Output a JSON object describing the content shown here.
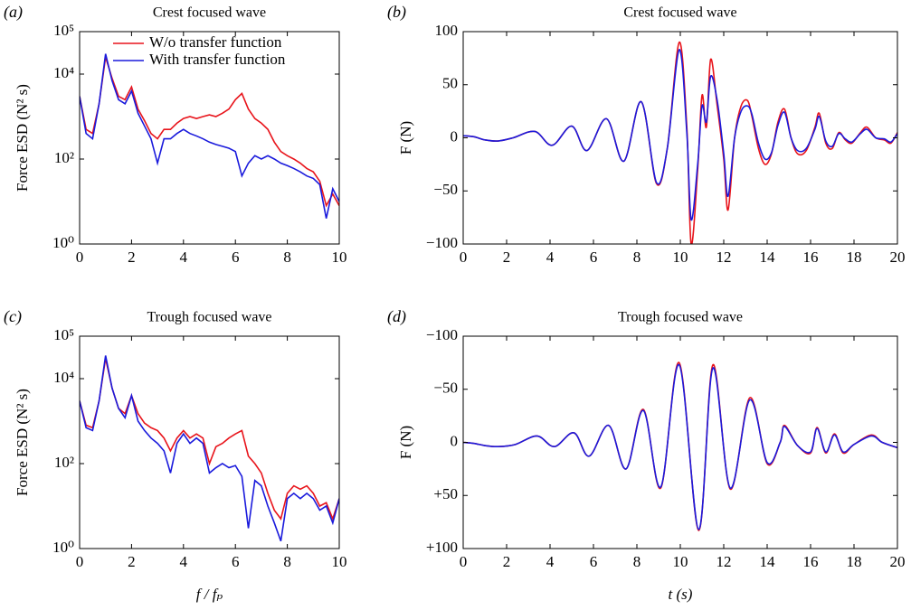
{
  "chart_data": [
    {
      "type": "line",
      "panel_label": "(a)",
      "title": "Crest focused wave",
      "ylabel": "Force ESD  (N² s)",
      "log_y": true,
      "legend": "upper right",
      "x": [
        0,
        0.25,
        0.5,
        0.75,
        1,
        1.25,
        1.5,
        1.75,
        2,
        2.25,
        2.5,
        2.75,
        3,
        3.25,
        3.5,
        3.75,
        4,
        4.25,
        4.5,
        4.75,
        5,
        5.25,
        5.5,
        5.75,
        6,
        6.25,
        6.5,
        6.75,
        7,
        7.25,
        7.5,
        7.75,
        8,
        8.25,
        8.5,
        8.75,
        9,
        9.25,
        9.5,
        9.75,
        10
      ],
      "series": [
        {
          "name": "W/o transfer function",
          "color": "#e8141b",
          "values": [
            3000,
            500,
            400,
            2000,
            25000,
            8000,
            3000,
            2500,
            5000,
            1500,
            800,
            400,
            300,
            500,
            500,
            700,
            900,
            1000,
            900,
            1000,
            1100,
            1000,
            1200,
            1500,
            2500,
            3500,
            1500,
            900,
            700,
            500,
            250,
            150,
            120,
            100,
            80,
            60,
            50,
            30,
            8,
            15,
            8
          ]
        },
        {
          "name": "With transfer function",
          "color": "#1a1adc",
          "values": [
            3000,
            400,
            300,
            2000,
            30000,
            7000,
            2500,
            2000,
            4000,
            1200,
            600,
            300,
            80,
            300,
            300,
            400,
            500,
            400,
            350,
            300,
            250,
            220,
            200,
            180,
            150,
            40,
            80,
            120,
            100,
            120,
            100,
            80,
            70,
            60,
            50,
            40,
            35,
            25,
            4,
            20,
            10
          ]
        }
      ],
      "xlim": [
        0,
        10
      ],
      "xticks": [
        0,
        2,
        4,
        6,
        8,
        10
      ],
      "ylim": [
        1,
        100000
      ],
      "yticks": [
        {
          "value": 1,
          "label": "10⁰"
        },
        {
          "value": 100,
          "label": "10²"
        },
        {
          "value": 10000,
          "label": "10⁴"
        },
        {
          "value": 100000,
          "label": "10⁵"
        }
      ]
    },
    {
      "type": "line",
      "panel_label": "(b)",
      "title": "Crest focused wave",
      "ylabel": "F (N)",
      "smooth": true,
      "x": [
        0,
        0.5,
        1.0,
        1.6,
        2.3,
        3.3,
        4.1,
        5.0,
        5.7,
        6.6,
        7.4,
        8.2,
        8.9,
        9.4,
        9.95,
        10.3,
        10.5,
        10.8,
        11.0,
        11.2,
        11.4,
        11.7,
        12.0,
        12.2,
        12.5,
        12.8,
        13.1,
        13.3,
        13.6,
        13.9,
        14.2,
        14.5,
        14.8,
        15.1,
        15.4,
        15.8,
        16.2,
        16.4,
        16.7,
        17.0,
        17.3,
        17.6,
        17.9,
        18.3,
        18.6,
        19.0,
        19.4,
        19.7,
        20
      ],
      "series": [
        {
          "name": "W/o transfer function",
          "color": "#e8141b",
          "values": [
            2,
            1,
            -2,
            -3,
            0,
            6,
            -7,
            11,
            -12,
            18,
            -22,
            34,
            -43,
            -10,
            90,
            10,
            -100,
            -30,
            40,
            10,
            74,
            30,
            -20,
            -68,
            0,
            30,
            35,
            20,
            -10,
            -25,
            -15,
            15,
            27,
            0,
            -15,
            -12,
            10,
            23,
            -5,
            -10,
            5,
            -2,
            -5,
            5,
            10,
            0,
            -2,
            -5,
            5
          ]
        },
        {
          "name": "With transfer function",
          "color": "#1a1adc",
          "values": [
            2,
            1,
            -2,
            -3,
            0,
            6,
            -7,
            11,
            -12,
            18,
            -22,
            34,
            -42,
            -10,
            83,
            5,
            -77,
            -25,
            30,
            15,
            58,
            35,
            -15,
            -55,
            0,
            25,
            30,
            22,
            -5,
            -20,
            -14,
            12,
            24,
            0,
            -12,
            -10,
            8,
            20,
            -3,
            -8,
            4,
            -1,
            -4,
            4,
            8,
            0,
            -1,
            -4,
            4
          ]
        }
      ],
      "xlim": [
        0,
        20
      ],
      "xticks": [
        0,
        2,
        4,
        6,
        8,
        10,
        12,
        14,
        16,
        18,
        20
      ],
      "ylim": [
        -100,
        100
      ],
      "yticks": [
        {
          "value": -100,
          "label": "−100"
        },
        {
          "value": -50,
          "label": "−50"
        },
        0,
        50,
        100
      ]
    },
    {
      "type": "line",
      "panel_label": "(c)",
      "title": "Trough focused wave",
      "ylabel": "Force ESD  (N² s)",
      "xlabel": "f / fₚ",
      "log_y": true,
      "x": [
        0,
        0.25,
        0.5,
        0.75,
        1,
        1.25,
        1.5,
        1.75,
        2,
        2.25,
        2.5,
        2.75,
        3,
        3.25,
        3.5,
        3.75,
        4,
        4.25,
        4.5,
        4.75,
        5,
        5.25,
        5.5,
        5.75,
        6,
        6.25,
        6.5,
        6.75,
        7,
        7.25,
        7.5,
        7.75,
        8,
        8.25,
        8.5,
        8.75,
        9,
        9.25,
        9.5,
        9.75,
        10
      ],
      "series": [
        {
          "color": "#e8141b",
          "values": [
            3000,
            800,
            700,
            3000,
            30000,
            6000,
            2000,
            1500,
            4000,
            1500,
            900,
            700,
            600,
            400,
            200,
            400,
            600,
            400,
            500,
            400,
            100,
            250,
            300,
            400,
            500,
            600,
            150,
            100,
            60,
            20,
            8,
            5,
            20,
            30,
            25,
            30,
            20,
            10,
            12,
            5,
            15
          ]
        },
        {
          "color": "#1a1adc",
          "values": [
            3000,
            700,
            600,
            3000,
            35000,
            6000,
            2000,
            1200,
            4000,
            1000,
            600,
            400,
            300,
            200,
            60,
            300,
            500,
            300,
            400,
            300,
            60,
            80,
            100,
            80,
            90,
            50,
            3,
            40,
            30,
            10,
            4,
            1.5,
            15,
            20,
            15,
            20,
            15,
            8,
            10,
            4,
            15
          ]
        }
      ],
      "xlim": [
        0,
        10
      ],
      "xticks": [
        0,
        2,
        4,
        6,
        8,
        10
      ],
      "ylim": [
        1,
        100000
      ],
      "yticks": [
        {
          "value": 1,
          "label": "10⁰"
        },
        {
          "value": 100,
          "label": "10²"
        },
        {
          "value": 10000,
          "label": "10⁴"
        },
        {
          "value": 100000,
          "label": "10⁵"
        }
      ]
    },
    {
      "type": "line",
      "panel_label": "(d)",
      "title": "Trough focused wave",
      "ylabel": "F (N)",
      "xlabel": "t (s)",
      "smooth": true,
      "x": [
        0,
        0.5,
        1.0,
        1.6,
        2.4,
        3.4,
        4.2,
        5.1,
        5.8,
        6.7,
        7.5,
        8.3,
        9.1,
        9.95,
        10.85,
        11.5,
        12.3,
        13.2,
        14.0,
        14.6,
        14.8,
        15.4,
        16.0,
        16.3,
        16.7,
        17.1,
        17.5,
        18.0,
        18.8,
        19.3,
        20
      ],
      "series": [
        {
          "color": "#e8141b",
          "values": [
            0,
            1,
            3,
            4,
            2,
            -6,
            4,
            -9,
            13,
            -16,
            25,
            -31,
            43,
            -75,
            83,
            -73,
            44,
            -42,
            20,
            0,
            -16,
            3,
            10,
            -14,
            10,
            -8,
            10,
            2,
            -7,
            0,
            5
          ]
        },
        {
          "color": "#1a1adc",
          "values": [
            0,
            1,
            3,
            4,
            2,
            -6,
            4,
            -9,
            13,
            -16,
            25,
            -30,
            42,
            -73,
            82,
            -70,
            43,
            -40,
            19,
            0,
            -15,
            3,
            9,
            -13,
            9,
            -7,
            9,
            2,
            -6,
            0,
            5
          ]
        }
      ],
      "xlim": [
        0,
        20
      ],
      "xticks": [
        0,
        2,
        4,
        6,
        8,
        10,
        12,
        14,
        16,
        18,
        20
      ],
      "ylim": [
        100,
        -100
      ],
      "yticks": [
        {
          "value": -100,
          "label": "−100"
        },
        {
          "value": -50,
          "label": "−50"
        },
        0,
        {
          "value": 50,
          "label": "+50"
        },
        {
          "value": 100,
          "label": "+100"
        }
      ]
    }
  ]
}
